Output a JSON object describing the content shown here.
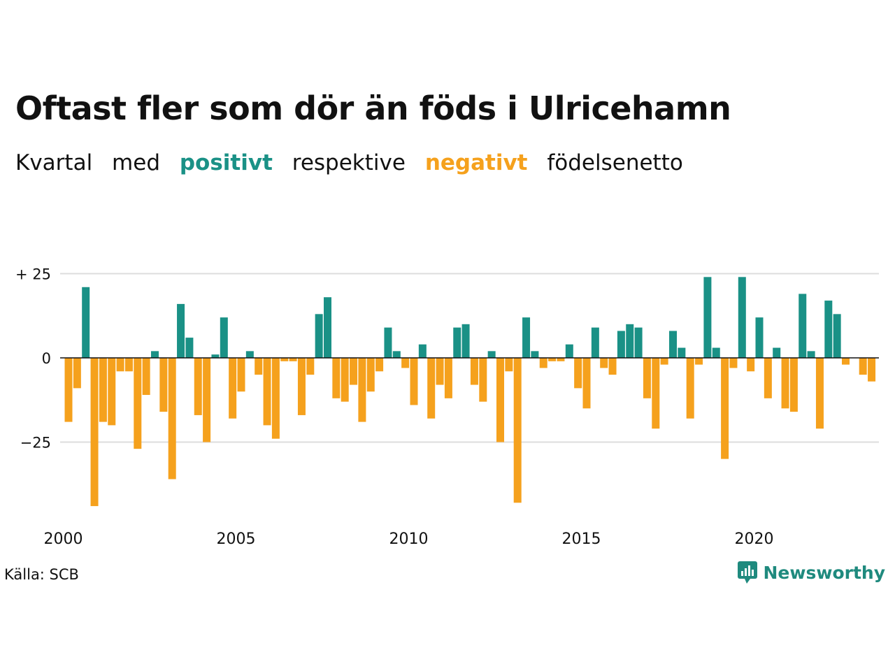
{
  "title": "Oftast fler som dör än föds i Ulricehamn",
  "subtitle": {
    "part1": "Kvartal",
    "part2": "med",
    "positive": "positivt",
    "part3": "respektive",
    "negative": "negativt",
    "part4": "födelsenetto"
  },
  "source": "Källa: SCB",
  "brand": "Newsworthy",
  "brand_icon": "newsworthy-logo-icon",
  "colors": {
    "positive": "#1a9186",
    "negative": "#f5a11d",
    "grid": "#dddddd",
    "text": "#111111"
  },
  "chart_data": {
    "type": "bar",
    "x_start": "2000 Q1",
    "x_tick_labels": [
      "2000",
      "2005",
      "2010",
      "2015",
      "2020"
    ],
    "y_tick_labels": [
      "+ 25",
      "0",
      "−25"
    ],
    "y_ticks": [
      25,
      0,
      -25
    ],
    "ylim": [
      -45,
      27
    ],
    "grid": "horizontal",
    "values": [
      -19,
      -9,
      21,
      -44,
      -19,
      -20,
      -4,
      -4,
      -27,
      -11,
      2,
      -16,
      -36,
      16,
      6,
      -17,
      -25,
      1,
      12,
      -18,
      -10,
      2,
      -5,
      -20,
      -24,
      -1,
      -1,
      -17,
      -5,
      13,
      18,
      -12,
      -13,
      -8,
      -19,
      -10,
      -4,
      9,
      2,
      -3,
      -14,
      4,
      -18,
      -8,
      -12,
      9,
      10,
      -8,
      -13,
      2,
      -25,
      -4,
      -43,
      12,
      2,
      -3,
      -1,
      -1,
      4,
      -9,
      -15,
      9,
      -3,
      -5,
      8,
      10,
      9,
      -12,
      -21,
      -2,
      8,
      3,
      -18,
      -2,
      24,
      3,
      -30,
      -3,
      24,
      -4,
      12,
      -12,
      3,
      -15,
      -16,
      19,
      2,
      -21,
      17,
      13,
      -2,
      0,
      -5,
      -7
    ]
  }
}
